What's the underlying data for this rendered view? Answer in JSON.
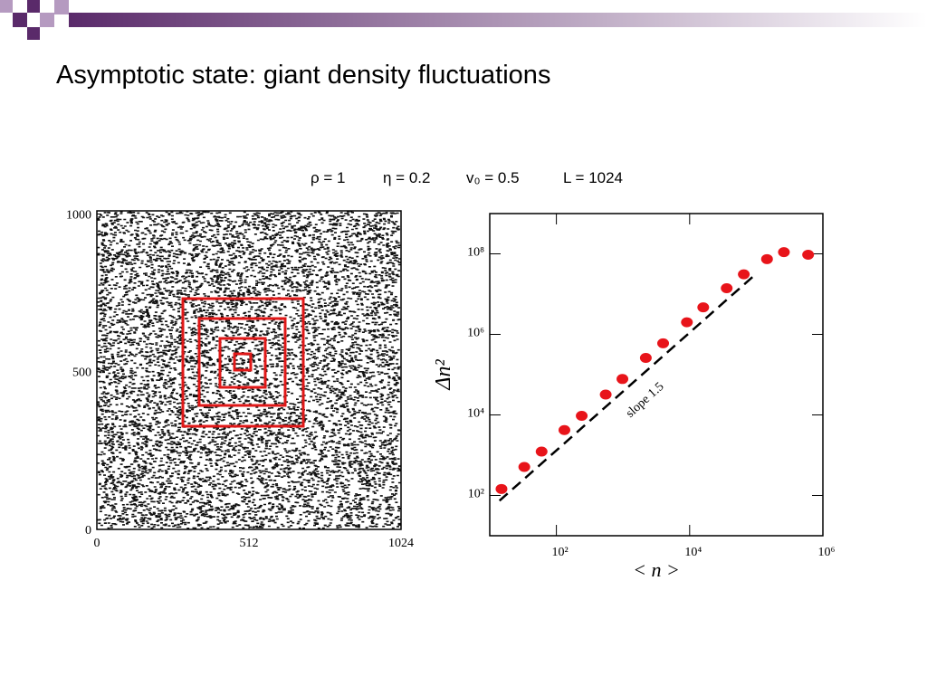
{
  "slide_title": "Asymptotic state: giant density fluctuations",
  "parameters": [
    "ρ = 1",
    "η = 0.2",
    "v₀ = 0.5",
    "L = 1024"
  ],
  "chart_data": [
    {
      "type": "snapshot",
      "xlim": [
        0,
        1024
      ],
      "xticks": [
        0,
        512,
        1024
      ],
      "ylim": [
        0,
        1010
      ],
      "yticks": [
        0,
        500,
        1000
      ]
    },
    {
      "type": "scatter",
      "log_x": true,
      "log_y": true,
      "x_label": "< n >",
      "y_label": "Δn²",
      "annotation": "slope 1.5",
      "xlim": [
        10,
        1000000
      ],
      "xticks": [
        {
          "value": 100,
          "label": "10²"
        },
        {
          "value": 10000,
          "label": "10⁴"
        },
        {
          "value": 1000000,
          "label": "10⁶"
        }
      ],
      "ylim": [
        10,
        1000000000
      ],
      "yticks": [
        {
          "value": 100,
          "label": "10²"
        },
        {
          "value": 10000,
          "label": "10⁴"
        },
        {
          "value": 1000000,
          "label": "10⁶"
        },
        {
          "value": 100000000,
          "label": "10⁸"
        }
      ],
      "x": [
        15,
        33,
        60,
        132,
        240,
        550,
        980,
        2200,
        4000,
        9100,
        16000,
        36000,
        65000,
        145000,
        260000,
        600000
      ],
      "series": [
        {
          "color": "#e8141a",
          "values": [
            145,
            510,
            1230,
            4200,
            9500,
            32000,
            78000,
            260000,
            600000,
            2000000,
            4700000,
            14000000,
            31000000,
            74000000,
            110000000,
            95000000
          ]
        }
      ],
      "reference_line": {
        "x": [
          14,
          91000
        ],
        "values": [
          74,
          28000000
        ]
      }
    }
  ]
}
